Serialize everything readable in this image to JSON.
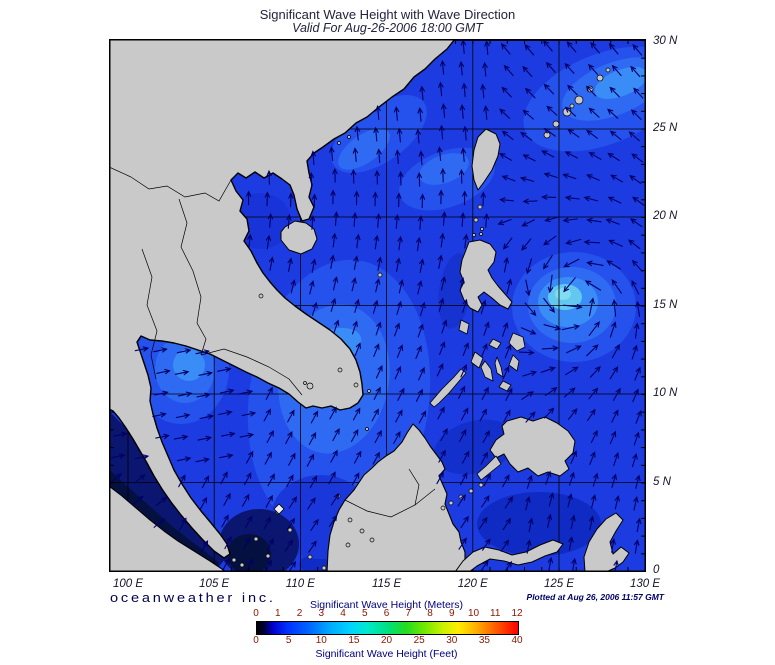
{
  "title": "Significant Wave Height with Wave Direction",
  "subtitle": "Valid For Aug-26-2006 18:00 GMT",
  "logo": "oceanweather inc.",
  "plotted_at": "Plotted at Aug 26, 2006 11:57 GMT",
  "axes": {
    "lon_ticks": [
      "100 E",
      "105 E",
      "110 E",
      "115 E",
      "120 E",
      "125 E",
      "130 E"
    ],
    "lat_ticks": [
      "30 N",
      "25 N",
      "20 N",
      "15 N",
      "10 N",
      "5 N",
      "0"
    ]
  },
  "colorbar": {
    "meters_label": "Significant Wave Height (Meters)",
    "feet_label": "Significant Wave Height (Feet)",
    "meters_ticks": [
      "0",
      "1",
      "2",
      "3",
      "4",
      "5",
      "6",
      "7",
      "8",
      "9",
      "10",
      "11",
      "12"
    ],
    "feet_ticks": [
      "0",
      "5",
      "10",
      "15",
      "20",
      "25",
      "30",
      "35",
      "40"
    ],
    "gradient_stops": [
      [
        "0%",
        "#000000"
      ],
      [
        "3%",
        "#000040"
      ],
      [
        "6%",
        "#0000cc"
      ],
      [
        "12%",
        "#0033ff"
      ],
      [
        "20%",
        "#0066ff"
      ],
      [
        "28%",
        "#00aaff"
      ],
      [
        "36%",
        "#00d4ff"
      ],
      [
        "42%",
        "#00e8d0"
      ],
      [
        "50%",
        "#00e080"
      ],
      [
        "57%",
        "#22dd22"
      ],
      [
        "64%",
        "#70e800"
      ],
      [
        "71%",
        "#c8f000"
      ],
      [
        "77%",
        "#ffee00"
      ],
      [
        "84%",
        "#ffb000"
      ],
      [
        "91%",
        "#ff6000"
      ],
      [
        "100%",
        "#ff0000"
      ]
    ]
  },
  "map": {
    "colors": {
      "sea_base": "#1c3be0",
      "land": "#c9c9c9",
      "coast": "#000000",
      "grid": "#000000",
      "arrow": "#000066",
      "frame": "#000000"
    },
    "sea_levels": [
      "#02071f",
      "#041040",
      "#0a1670",
      "#102ac4",
      "#1c3be0",
      "#2551ec",
      "#2e6bf2",
      "#3a8cf7",
      "#4aa5f8",
      "#62c8f0",
      "#7fdcf2"
    ]
  },
  "chart_data": {
    "type": "heatmap",
    "title": "Significant Wave Height with Wave Direction",
    "valid": "Aug-26-2006 18:00 GMT",
    "lon_range_deg_e": [
      99,
      130
    ],
    "lat_range_deg_n": [
      0,
      30
    ],
    "units": [
      "meters",
      "feet"
    ],
    "scale_meters": [
      0,
      12
    ],
    "scale_feet": [
      0,
      40
    ],
    "grid_spacing_deg": 5,
    "notable": [
      {
        "feature": "tropical cyclone swirl east of Luzon",
        "approx_lon_e": 125,
        "approx_lat_n": 15,
        "peak_hs_m": 4
      },
      {
        "feature": "near-calm water in Malacca Strait and along Sumatra coast",
        "hs_m": 0.5
      },
      {
        "feature": "southwest monsoon seas across South China Sea, waves directed NE",
        "hs_m": 2
      }
    ]
  }
}
